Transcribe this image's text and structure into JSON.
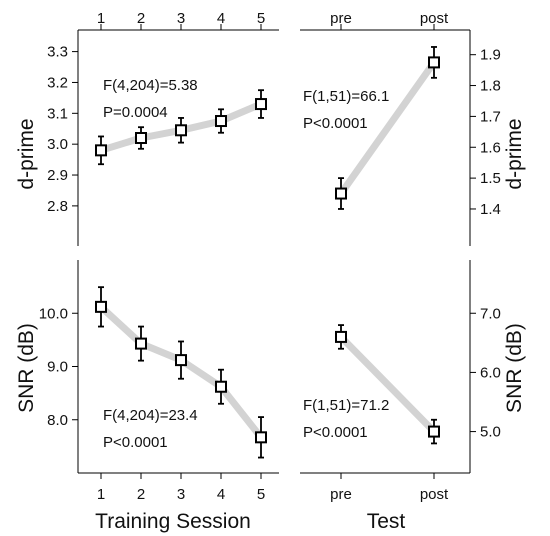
{
  "chart_data": [
    {
      "id": "dprime-session",
      "type": "line",
      "ylabel": "d-prime",
      "categories": [
        "1",
        "2",
        "3",
        "4",
        "5"
      ],
      "top_tick_labels": [
        "1",
        "2",
        "3",
        "4",
        "5"
      ],
      "values": [
        2.98,
        3.02,
        3.045,
        3.075,
        3.13
      ],
      "errors": [
        0.045,
        0.035,
        0.04,
        0.038,
        0.045
      ],
      "ylim": [
        2.67,
        3.37
      ],
      "yticks": [
        "2.8",
        "2.9",
        "3.0",
        "3.1",
        "3.2",
        "3.3"
      ],
      "y_axis_side": "left",
      "annotation": [
        "F(4,204)=5.38",
        "P=0.0004"
      ],
      "grid": false
    },
    {
      "id": "dprime-test",
      "type": "line",
      "ylabel": "d-prime",
      "categories": [
        "pre",
        "post"
      ],
      "top_tick_labels": [
        "pre",
        "post"
      ],
      "values": [
        1.45,
        1.875
      ],
      "errors": [
        0.05,
        0.05
      ],
      "ylim": [
        1.28,
        1.98
      ],
      "yticks": [
        "1.4",
        "1.5",
        "1.6",
        "1.7",
        "1.8",
        "1.9"
      ],
      "y_axis_side": "right",
      "annotation": [
        "F(1,51)=66.1",
        "P<0.0001"
      ],
      "grid": false
    },
    {
      "id": "snr-session",
      "type": "line",
      "ylabel": "SNR (dB)",
      "xlabel": "Training Session",
      "categories": [
        "1",
        "2",
        "3",
        "4",
        "5"
      ],
      "values": [
        10.12,
        9.43,
        9.12,
        8.62,
        7.67
      ],
      "errors": [
        0.37,
        0.32,
        0.35,
        0.32,
        0.38
      ],
      "ylim": [
        7.0,
        11.0
      ],
      "yticks": [
        "8.0",
        "9.0",
        "10.0"
      ],
      "y_axis_side": "left",
      "annotation": [
        "F(4,204)=23.4",
        "P<0.0001"
      ],
      "grid": false
    },
    {
      "id": "snr-test",
      "type": "line",
      "ylabel": "SNR (dB)",
      "xlabel": "Test",
      "categories": [
        "pre",
        "post"
      ],
      "values": [
        6.6,
        5.0
      ],
      "errors": [
        0.2,
        0.2
      ],
      "ylim": [
        4.3,
        7.9
      ],
      "yticks": [
        "5.0",
        "6.0",
        "7.0"
      ],
      "y_axis_side": "right",
      "annotation": [
        "F(1,51)=71.2",
        "P<0.0001"
      ],
      "grid": false
    }
  ]
}
